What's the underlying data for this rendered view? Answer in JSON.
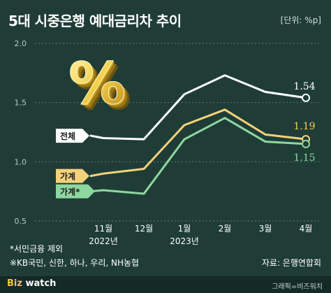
{
  "header": {
    "title": "5대 시중은행 예대금리차 추이",
    "unit": "[단위: %p]"
  },
  "chart_data": {
    "type": "line",
    "categories": [
      {
        "month": "11월",
        "year": "2022년"
      },
      {
        "month": "12월",
        "year": ""
      },
      {
        "month": "1월",
        "year": "2023년"
      },
      {
        "month": "2월",
        "year": ""
      },
      {
        "month": "3월",
        "year": ""
      },
      {
        "month": "4월",
        "year": ""
      }
    ],
    "x_start_offset": 0.5,
    "ylim": [
      0.5,
      2.0
    ],
    "yticks": [
      "0.5",
      "1.0",
      "1.5",
      "2.0"
    ],
    "grid": "horizontal-dotted",
    "series": [
      {
        "name": "전체",
        "color": "#ffffff",
        "start": 1.22,
        "values": [
          1.2,
          1.19,
          1.57,
          1.73,
          1.59,
          1.54
        ],
        "end_label": "1.54",
        "label_color": "#ffffff"
      },
      {
        "name": "가계",
        "color": "#f4d27a",
        "start": 0.88,
        "values": [
          0.9,
          0.94,
          1.31,
          1.44,
          1.23,
          1.19
        ],
        "end_label": "1.19",
        "label_color": "#f6cf55"
      },
      {
        "name": "가계*",
        "color": "#8fd7a0",
        "start": 0.75,
        "values": [
          0.76,
          0.73,
          1.19,
          1.37,
          1.17,
          1.15
        ],
        "end_label": "1.15",
        "label_color": "#8fd7a0"
      }
    ]
  },
  "decor": {
    "percent_symbol": "%"
  },
  "footnotes": {
    "note1": "*서민금융 제외",
    "note2": "※KB국민, 신한, 하나, 우리, NH농협"
  },
  "source": "자료: 은행연합회",
  "footer": {
    "logo_prefix": "Biz",
    "logo_suffix": "watch",
    "credit": "그래픽=비즈워치"
  }
}
